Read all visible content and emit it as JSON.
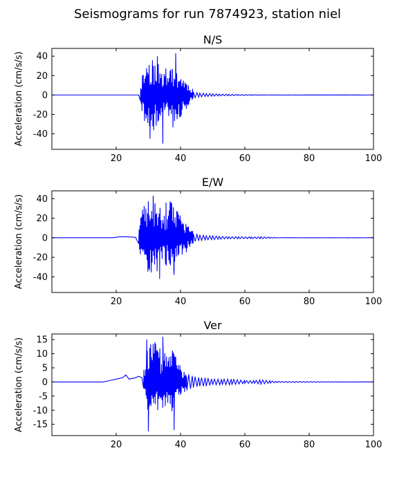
{
  "figure": {
    "title": "Seismograms for run 7874923, station niel"
  },
  "chart_data": [
    {
      "type": "line",
      "title": "N/S",
      "xlabel": "",
      "ylabel": "Acceleration (cm/s/s)",
      "xlim": [
        0,
        100
      ],
      "ylim": [
        -56,
        48
      ],
      "xticks": [
        20,
        40,
        60,
        80,
        100
      ],
      "yticks": [
        -40,
        -20,
        0,
        20,
        40
      ],
      "grid": false,
      "line_color": "#0000ff",
      "quiet_points": [
        [
          0,
          0
        ],
        [
          27,
          0
        ]
      ],
      "burst": {
        "start": 27.5,
        "end": 44,
        "peak": 42,
        "seed": 11
      },
      "coda": [
        [
          44,
          3
        ],
        [
          46,
          2
        ],
        [
          48,
          1.5
        ],
        [
          50,
          1.3
        ],
        [
          52,
          1
        ],
        [
          55,
          0.8
        ],
        [
          58,
          0.5
        ],
        [
          62,
          0.3
        ],
        [
          66,
          0.2
        ],
        [
          70,
          0.1
        ],
        [
          100,
          0
        ]
      ],
      "visible_peaks": [
        [
          32.8,
          40
        ],
        [
          38.5,
          43
        ],
        [
          34.5,
          -50
        ],
        [
          30.5,
          -45
        ]
      ]
    },
    {
      "type": "line",
      "title": "E/W",
      "xlabel": "",
      "ylabel": "Acceleration (cm/s/s)",
      "xlim": [
        0,
        100
      ],
      "ylim": [
        -56,
        48
      ],
      "xticks": [
        20,
        40,
        60,
        80,
        100
      ],
      "yticks": [
        -40,
        -20,
        0,
        20,
        40
      ],
      "grid": false,
      "line_color": "#0000ff",
      "quiet_points": [
        [
          0,
          0
        ],
        [
          19,
          0
        ],
        [
          21,
          1
        ],
        [
          23,
          1
        ],
        [
          26,
          0.5
        ]
      ],
      "burst": {
        "start": 27,
        "end": 44,
        "peak": 44,
        "seed": 23
      },
      "coda": [
        [
          44,
          4
        ],
        [
          46,
          3
        ],
        [
          48,
          2
        ],
        [
          50,
          2
        ],
        [
          52,
          1.5
        ],
        [
          55,
          1
        ],
        [
          58,
          1
        ],
        [
          62,
          0.8
        ],
        [
          65,
          1
        ],
        [
          68,
          0.5
        ],
        [
          70,
          0.2
        ],
        [
          100,
          0
        ]
      ],
      "visible_peaks": [
        [
          31.5,
          43
        ],
        [
          35.5,
          36
        ],
        [
          33.5,
          -42
        ],
        [
          38,
          -38
        ]
      ]
    },
    {
      "type": "line",
      "title": "Ver",
      "xlabel": "",
      "ylabel": "Acceleration (cm/s/s)",
      "xlim": [
        0,
        100
      ],
      "ylim": [
        -19,
        17
      ],
      "xticks": [
        20,
        40,
        60,
        80,
        100
      ],
      "yticks": [
        -15,
        -10,
        -5,
        0,
        5,
        10,
        15
      ],
      "grid": false,
      "line_color": "#0000ff",
      "quiet_points": [
        [
          0,
          0
        ],
        [
          16,
          0
        ],
        [
          18,
          0.5
        ],
        [
          20,
          1
        ],
        [
          22,
          1.5
        ],
        [
          23,
          2.5
        ],
        [
          24,
          1
        ],
        [
          26,
          1.5
        ],
        [
          27,
          2
        ],
        [
          28,
          1.5
        ]
      ],
      "burst": {
        "start": 28.5,
        "end": 42,
        "peak": 16,
        "seed": 37
      },
      "coda": [
        [
          42,
          3
        ],
        [
          44,
          2
        ],
        [
          46,
          1.5
        ],
        [
          48,
          1.5
        ],
        [
          50,
          1
        ],
        [
          53,
          1
        ],
        [
          56,
          1
        ],
        [
          60,
          0.5
        ],
        [
          63,
          0.5
        ],
        [
          65,
          0.8
        ],
        [
          68,
          0.4
        ],
        [
          70,
          0.2
        ],
        [
          100,
          0
        ]
      ],
      "visible_peaks": [
        [
          34.5,
          16
        ],
        [
          29.5,
          15
        ],
        [
          30,
          -17.5
        ],
        [
          38,
          -17
        ]
      ]
    }
  ]
}
